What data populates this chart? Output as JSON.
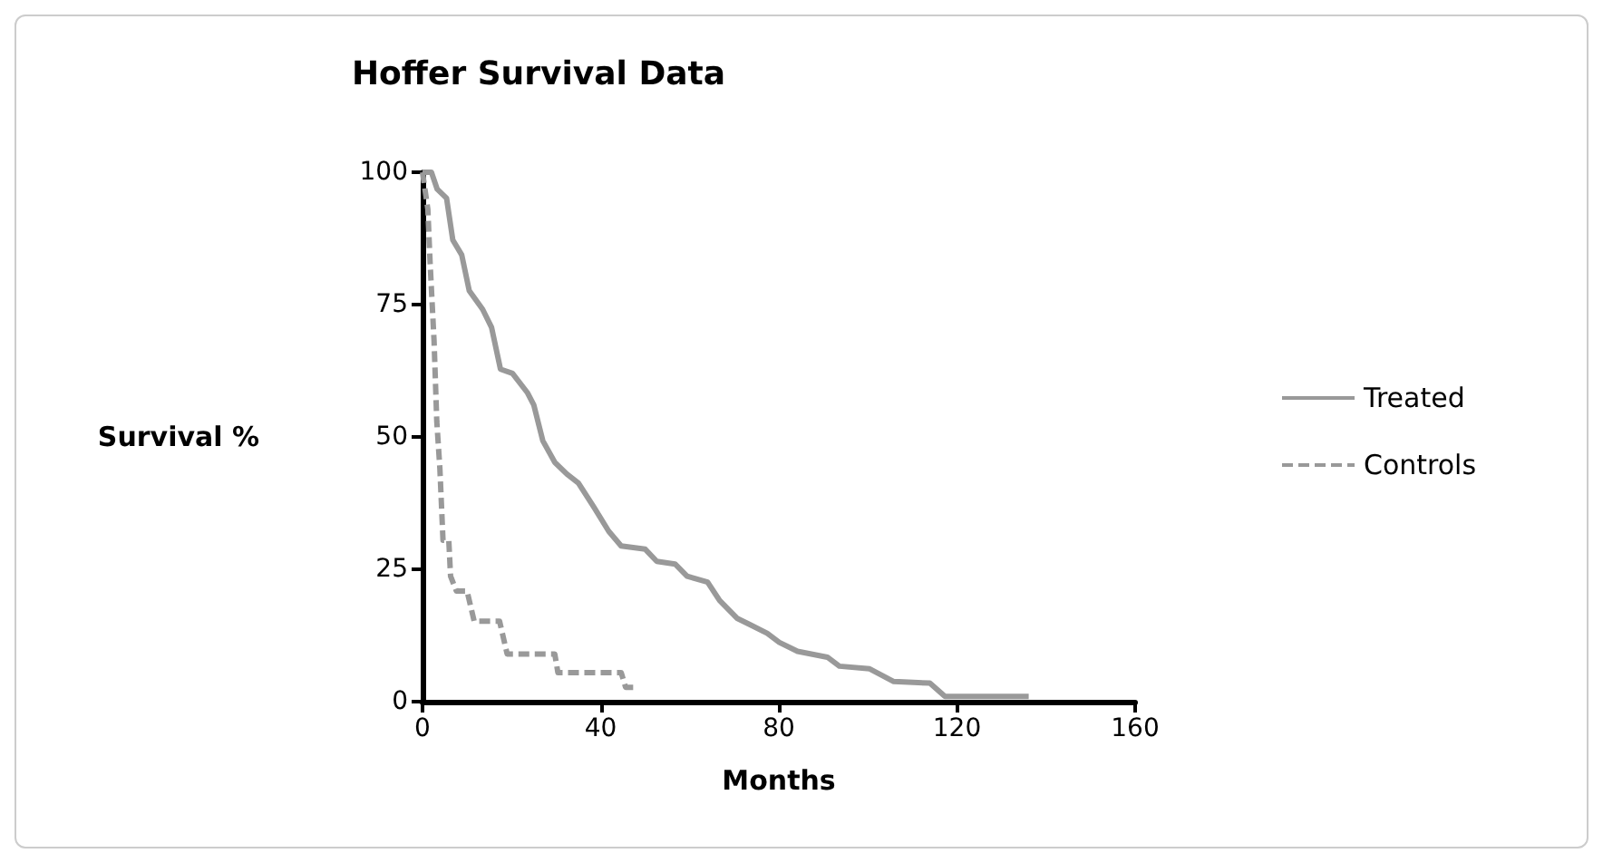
{
  "chart_data": {
    "type": "line",
    "title": "Hoffer Survival Data",
    "xlabel": "Months",
    "ylabel": "Survival %",
    "xlim": [
      0,
      160
    ],
    "xticks": [
      0,
      40,
      80,
      120,
      160
    ],
    "ylim": [
      0,
      100
    ],
    "yticks": [
      0,
      25,
      50,
      75,
      100
    ],
    "grid": false,
    "legend": "right",
    "marker": "none",
    "series": [
      {
        "name": "Treated",
        "color": "#999999",
        "line_style": "solid",
        "x": [
          0,
          2,
          3.3,
          5.4,
          6.8,
          8.8,
          10.5,
          13.5,
          15.5,
          17.5,
          20.2,
          23.6,
          25,
          27,
          29.7,
          32.4,
          35,
          38.5,
          41.8,
          44.6,
          50,
          52.6,
          56.7,
          59.4,
          64,
          66.7,
          70.7,
          73.4,
          77.4,
          80.1,
          84.2,
          90.9,
          93.6,
          100.4,
          105.8,
          113.9,
          117.3,
          136.1
        ],
        "values": [
          100,
          100,
          96.8,
          95.1,
          87.2,
          84.4,
          77.6,
          74.1,
          70.7,
          62.8,
          62,
          58.3,
          56,
          49.3,
          45.2,
          43,
          41.3,
          36.7,
          32.2,
          29.4,
          28.8,
          26.5,
          26,
          23.7,
          22.6,
          19.1,
          15.7,
          14.6,
          12.9,
          11.2,
          9.5,
          8.4,
          6.7,
          6.2,
          3.8,
          3.5,
          1,
          1
        ]
      },
      {
        "name": "Controls",
        "color": "#999999",
        "line_style": "dashed",
        "x": [
          0,
          1.2,
          1.7,
          2.6,
          3.2,
          3.9,
          4.6,
          5.9,
          6.3,
          7.6,
          10,
          11.6,
          17.3,
          19,
          29.7,
          30.4,
          44.6,
          45.6,
          48
        ],
        "values": [
          100,
          93,
          83,
          68,
          53,
          44,
          30.5,
          30.5,
          23.7,
          20.9,
          20.9,
          15.2,
          15.2,
          9,
          9,
          5.5,
          5.5,
          2.7,
          2.7
        ]
      }
    ]
  }
}
